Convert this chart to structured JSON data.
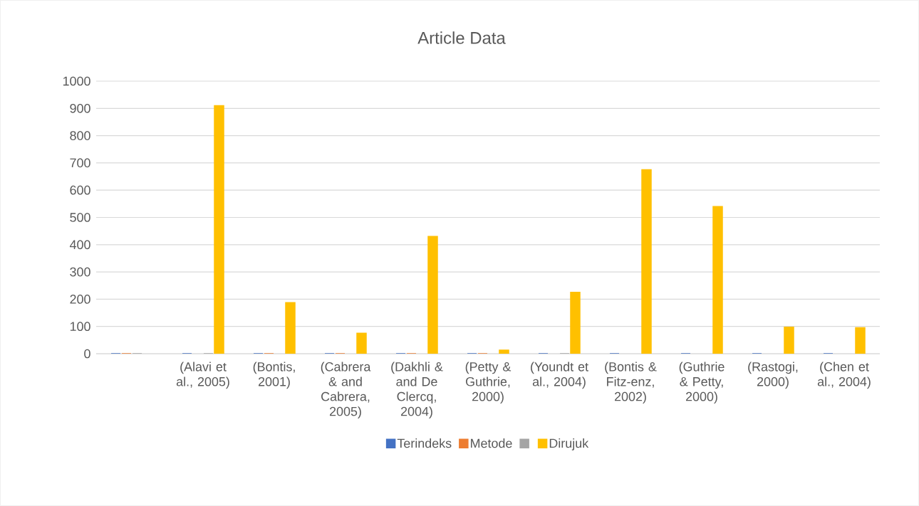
{
  "chart_data": {
    "type": "bar",
    "title": "Article Data",
    "categories": [
      null,
      "(Alavi et al., 2005)",
      "(Bontis, 2001)",
      "(Cabrera & and Cabrera, 2005)",
      "(Dakhli & and De Clercq, 2004)",
      "(Petty & Guthrie, 2000)",
      "(Youndt et al., 2004)",
      "(Bontis & Fitz-enz, 2002)",
      "(Guthrie & Petty, 2000)",
      "(Rastogi, 2000)",
      "(Chen et al., 2004)"
    ],
    "series": [
      {
        "name": "Terindeks",
        "color": "#4472c4",
        "values": [
          0,
          0,
          0,
          0,
          0,
          0,
          0,
          0,
          0,
          0,
          0
        ]
      },
      {
        "name": "Metode",
        "color": "#ed7d31",
        "values": [
          0,
          null,
          0,
          0,
          0,
          0,
          null,
          null,
          null,
          null,
          null
        ]
      },
      {
        "color": "#a5a5a5",
        "values": [
          0,
          0,
          null,
          null,
          null,
          null,
          0,
          null,
          null,
          null,
          null
        ]
      },
      {
        "name": "Dirujuk",
        "color": "#ffc000",
        "values": [
          null,
          910,
          187,
          75,
          430,
          13,
          225,
          675,
          540,
          97,
          95
        ]
      }
    ],
    "ylim": [
      0,
      1000
    ],
    "yticks": [
      0,
      100,
      200,
      300,
      400,
      500,
      600,
      700,
      800,
      900,
      1000
    ],
    "grid": "y",
    "legend": "bottom"
  }
}
